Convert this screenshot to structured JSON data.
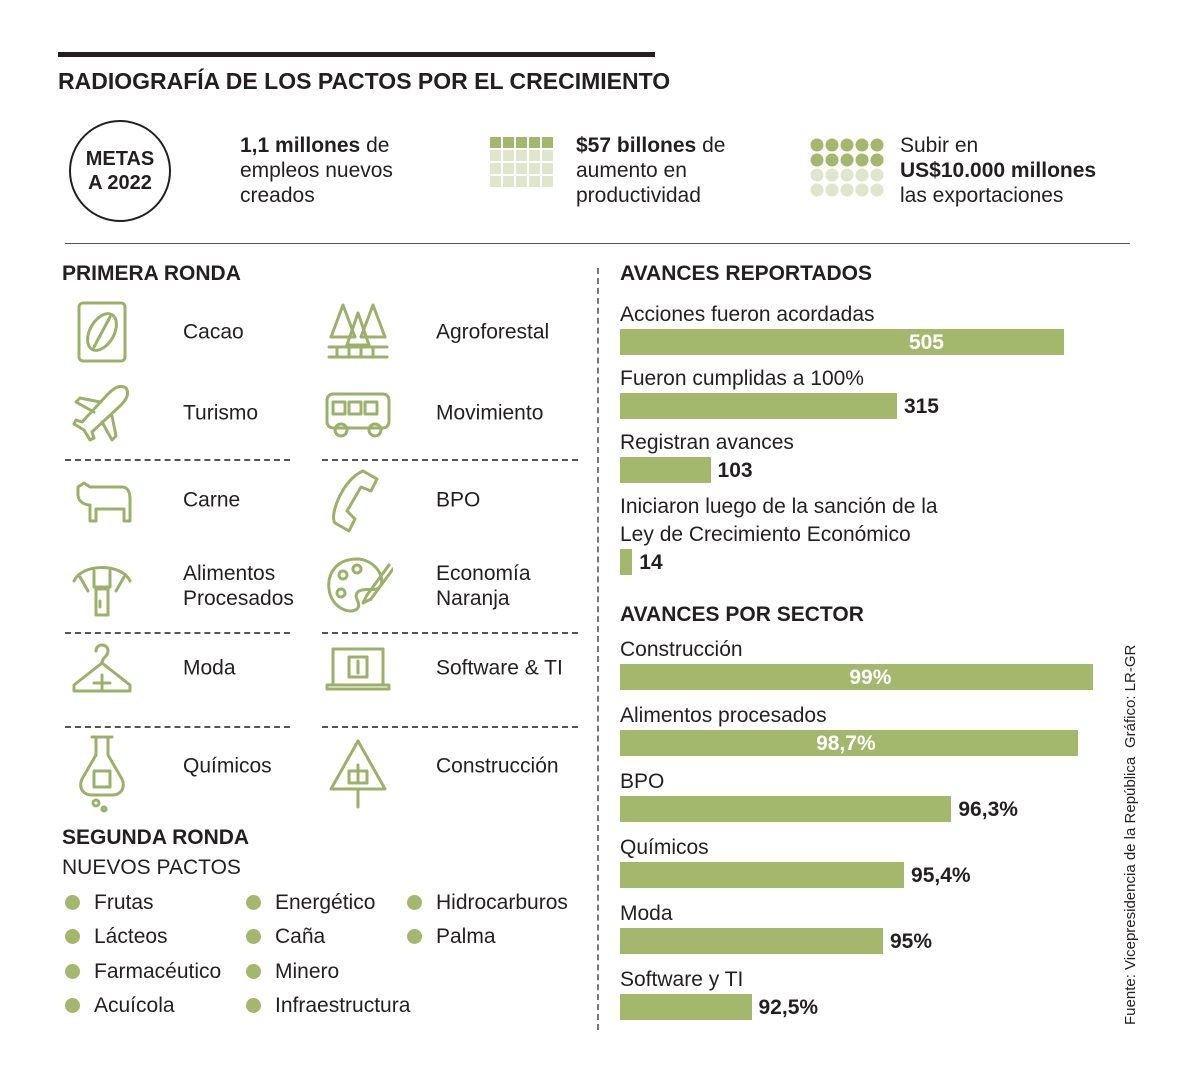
{
  "header": {
    "title": "RADIOGRAFÍA DE LOS PACTOS POR EL CRECIMIENTO",
    "badge": "METAS A 2022"
  },
  "goals": [
    {
      "bold": "1,1 millones",
      "after": "de empleos nuevos creados"
    },
    {
      "bold": "$57 billones",
      "after": "de aumento en productividad"
    },
    {
      "before": "Subir en",
      "bold": "US$10.000 millones",
      "after": "las exportaciones"
    }
  ],
  "first_round": {
    "title": "PRIMERA RONDA",
    "sectors": [
      "Cacao",
      "Agroforestal",
      "Turismo",
      "Movimiento",
      "Carne",
      "BPO",
      "Alimentos Procesados",
      "Economía Naranja",
      "Moda",
      "Software & TI",
      "Químicos",
      "Construcción"
    ]
  },
  "second_round": {
    "title": "SEGUNDA RONDA",
    "subtitle": "NUEVOS PACTOS",
    "pacts": [
      "Frutas",
      "Lácteos",
      "Farmacéutico",
      "Acuícola",
      "Energético",
      "Caña",
      "Minero",
      "Infraestructura",
      "Hidrocarburos",
      "Palma"
    ]
  },
  "chart_data": [
    {
      "type": "bar",
      "title": "AVANCES REPORTADOS",
      "categories": [
        "Acciones fueron acordadas",
        "Fueron cumplidas a 100%",
        "Registran avances",
        "Iniciaron luego de la sanción de la Ley de Crecimiento Económico"
      ],
      "values": [
        505,
        315,
        103,
        14
      ],
      "color": "#a3b86c",
      "xlim": [
        0,
        505
      ]
    },
    {
      "type": "bar",
      "title": "AVANCES POR SECTOR",
      "categories": [
        "Construcción",
        "Alimentos procesados",
        "BPO",
        "Químicos",
        "Moda",
        "Software y TI"
      ],
      "values": [
        99,
        98.7,
        96.3,
        95.4,
        95,
        92.5
      ],
      "value_labels": [
        "99%",
        "98,7%",
        "96,3%",
        "95,4%",
        "95%",
        "92,5%"
      ],
      "color": "#a3b86c",
      "xlim": [
        90,
        100
      ]
    }
  ],
  "credits": {
    "graphic": "Gráfico: LR-GR",
    "source": "Fuente: Vicepresidencia de la República"
  }
}
